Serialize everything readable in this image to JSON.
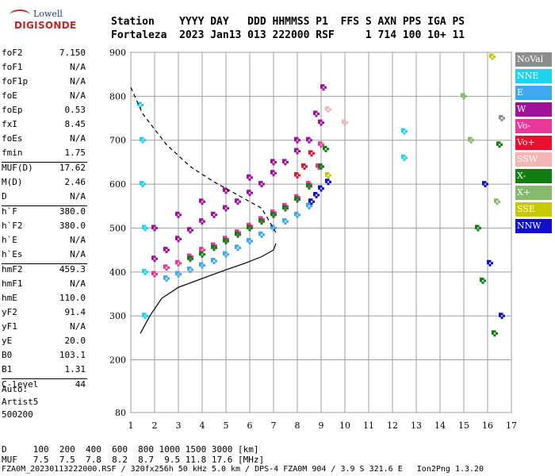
{
  "logo": {
    "line1": "Lowell",
    "line2": "DIGISONDE"
  },
  "header": {
    "line1": "Station    YYYY DAY   DDD HHMMSS P1  FFS S AXN PPS IGA PS",
    "line2": "Fortaleza  2023 Jan13 013 222000 RSF     1 714 100 10+ 11"
  },
  "params": [
    {
      "k": "foF2",
      "v": "7.150"
    },
    {
      "k": "foF1",
      "v": "N/A"
    },
    {
      "k": "foF1p",
      "v": "N/A"
    },
    {
      "k": "foE",
      "v": "N/A"
    },
    {
      "k": "foEp",
      "v": "0.53"
    },
    {
      "k": "fxI",
      "v": "8.45"
    },
    {
      "k": "foEs",
      "v": "N/A"
    },
    {
      "k": "fmin",
      "v": "1.75"
    },
    {
      "k": "MUF(D)",
      "v": "17.62"
    },
    {
      "k": "M(D)",
      "v": "2.46"
    },
    {
      "k": "D",
      "v": "N/A"
    },
    {
      "k": "h`F",
      "v": "380.0"
    },
    {
      "k": "h`F2",
      "v": "380.0"
    },
    {
      "k": "h`E",
      "v": "N/A"
    },
    {
      "k": "h`Es",
      "v": "N/A"
    },
    {
      "k": "hmF2",
      "v": "459.3"
    },
    {
      "k": "hmF1",
      "v": "N/A"
    },
    {
      "k": "hmE",
      "v": "110.0"
    },
    {
      "k": "yF2",
      "v": "91.4"
    },
    {
      "k": "yF1",
      "v": "N/A"
    },
    {
      "k": "yE",
      "v": "20.0"
    },
    {
      "k": "B0",
      "v": "103.1"
    },
    {
      "k": "B1",
      "v": "1.31"
    },
    {
      "k": "C-level",
      "v": "44"
    }
  ],
  "auto": {
    "line1": "Auto:",
    "line2": "Artist5",
    "line3": "500200"
  },
  "legend": [
    {
      "label": "NoVal",
      "color": "#8c8c8c"
    },
    {
      "label": "NNE",
      "color": "#1ed2f0"
    },
    {
      "label": "E",
      "color": "#3fa9f0"
    },
    {
      "label": "W",
      "color": "#a0129a"
    },
    {
      "label": "Vo-",
      "color": "#e8399a"
    },
    {
      "label": "Vo+",
      "color": "#e8102e"
    },
    {
      "label": "SSW",
      "color": "#f4b4b4"
    },
    {
      "label": "X-",
      "color": "#0e7f10"
    },
    {
      "label": "X+",
      "color": "#86b86e"
    },
    {
      "label": "SSE",
      "color": "#c8c800"
    },
    {
      "label": "NNW",
      "color": "#1010c8"
    }
  ],
  "footer": {
    "d_row": "D     100  200  400  600  800 1000 1500 3000 [km]",
    "muf_row": "MUF   7.5  7.5  7.8  8.2  8.7  9.5 11.8 17.6 [MHz]",
    "file_row": "FZA0M_20230113222000.RSF / 320fx256h 50 kHz 5.0 km / DPS-4 FZA0M 904 / 3.9 S 321.6 E   Ion2Png 1.3.20"
  },
  "chart_data": {
    "type": "scatter",
    "title": "",
    "xlabel": "",
    "ylabel": "",
    "xlim": [
      1,
      17
    ],
    "ylim": [
      80,
      900
    ],
    "x_ticks": [
      1,
      2,
      3,
      4,
      5,
      6,
      7,
      8,
      9,
      10,
      11,
      12,
      13,
      14,
      15,
      16,
      17
    ],
    "y_ticks": [
      80,
      200,
      300,
      400,
      500,
      600,
      700,
      800,
      900
    ],
    "grid": true,
    "profile_curve": {
      "style": "solid",
      "points": [
        [
          1.4,
          260
        ],
        [
          1.8,
          300
        ],
        [
          2.3,
          340
        ],
        [
          3,
          365
        ],
        [
          4,
          385
        ],
        [
          5,
          405
        ],
        [
          5.8,
          420
        ],
        [
          6.5,
          435
        ],
        [
          7.0,
          450
        ],
        [
          7.1,
          465
        ]
      ]
    },
    "dashed_curve": {
      "style": "dashed",
      "points": [
        [
          1.0,
          820
        ],
        [
          1.5,
          760
        ],
        [
          2.5,
          690
        ],
        [
          3.5,
          640
        ],
        [
          4.5,
          605
        ],
        [
          5.5,
          575
        ],
        [
          6.5,
          545
        ],
        [
          7.1,
          490
        ]
      ]
    },
    "series": [
      {
        "name": "W",
        "color": "#a0129a",
        "points": [
          [
            2,
            430
          ],
          [
            2.5,
            450
          ],
          [
            3,
            475
          ],
          [
            3.5,
            495
          ],
          [
            4,
            515
          ],
          [
            4.5,
            530
          ],
          [
            5,
            545
          ],
          [
            5.5,
            560
          ],
          [
            6,
            580
          ],
          [
            6.5,
            600
          ],
          [
            7,
            625
          ],
          [
            7.5,
            650
          ],
          [
            8,
            675
          ],
          [
            8.5,
            700
          ],
          [
            9,
            740
          ],
          [
            9.1,
            820
          ],
          [
            2,
            500
          ],
          [
            3,
            530
          ],
          [
            4,
            560
          ],
          [
            5,
            585
          ],
          [
            6,
            615
          ],
          [
            7,
            650
          ],
          [
            8,
            700
          ],
          [
            8.8,
            760
          ]
        ]
      },
      {
        "name": "Vo-",
        "color": "#e8399a",
        "points": [
          [
            2,
            395
          ],
          [
            2.5,
            410
          ],
          [
            3,
            420
          ],
          [
            3.5,
            435
          ],
          [
            4,
            450
          ],
          [
            4.5,
            460
          ],
          [
            5,
            475
          ],
          [
            5.5,
            490
          ],
          [
            6,
            505
          ],
          [
            6.5,
            520
          ],
          [
            7,
            535
          ],
          [
            7.5,
            550
          ],
          [
            8,
            570
          ],
          [
            8.5,
            600
          ],
          [
            8.9,
            640
          ],
          [
            9,
            690
          ]
        ]
      },
      {
        "name": "X-",
        "color": "#0e7f10",
        "points": [
          [
            3.5,
            430
          ],
          [
            4,
            440
          ],
          [
            4.5,
            455
          ],
          [
            5,
            470
          ],
          [
            5.5,
            485
          ],
          [
            6,
            500
          ],
          [
            6.5,
            515
          ],
          [
            7,
            530
          ],
          [
            7.5,
            545
          ],
          [
            8,
            565
          ],
          [
            8.5,
            595
          ],
          [
            9,
            640
          ],
          [
            9.2,
            680
          ],
          [
            15.6,
            500
          ],
          [
            15.8,
            380
          ],
          [
            16.3,
            260
          ],
          [
            16.5,
            690
          ]
        ]
      },
      {
        "name": "E",
        "color": "#3fa9f0",
        "points": [
          [
            2.5,
            385
          ],
          [
            3,
            395
          ],
          [
            3.5,
            405
          ],
          [
            4,
            415
          ],
          [
            4.5,
            425
          ],
          [
            5,
            440
          ],
          [
            5.5,
            455
          ],
          [
            6,
            470
          ],
          [
            6.5,
            485
          ],
          [
            7,
            500
          ],
          [
            7.5,
            515
          ],
          [
            8,
            530
          ],
          [
            8.5,
            550
          ]
        ]
      },
      {
        "name": "NNW",
        "color": "#1010c8",
        "points": [
          [
            8.6,
            560
          ],
          [
            8.8,
            575
          ],
          [
            9,
            590
          ],
          [
            9.3,
            605
          ],
          [
            15.9,
            600
          ],
          [
            16.1,
            420
          ],
          [
            16.6,
            300
          ]
        ]
      },
      {
        "name": "NNE",
        "color": "#1ed2f0",
        "points": [
          [
            1.4,
            780
          ],
          [
            1.5,
            700
          ],
          [
            1.5,
            600
          ],
          [
            1.6,
            500
          ],
          [
            1.6,
            400
          ],
          [
            1.6,
            300
          ],
          [
            12.5,
            720
          ],
          [
            12.5,
            660
          ]
        ]
      },
      {
        "name": "Vo+",
        "color": "#e8102e",
        "points": [
          [
            8,
            620
          ],
          [
            8.3,
            640
          ],
          [
            8.6,
            670
          ]
        ]
      },
      {
        "name": "SSW",
        "color": "#f4b4b4",
        "points": [
          [
            9.3,
            770
          ],
          [
            10,
            740
          ]
        ]
      },
      {
        "name": "SSE",
        "color": "#c8c800",
        "points": [
          [
            9.3,
            620
          ],
          [
            16.2,
            890
          ]
        ]
      },
      {
        "name": "X+",
        "color": "#86b86e",
        "points": [
          [
            15,
            800
          ],
          [
            15.3,
            700
          ],
          [
            16.4,
            560
          ]
        ]
      },
      {
        "name": "NoVal",
        "color": "#8c8c8c",
        "points": [
          [
            16.6,
            750
          ]
        ]
      }
    ]
  }
}
